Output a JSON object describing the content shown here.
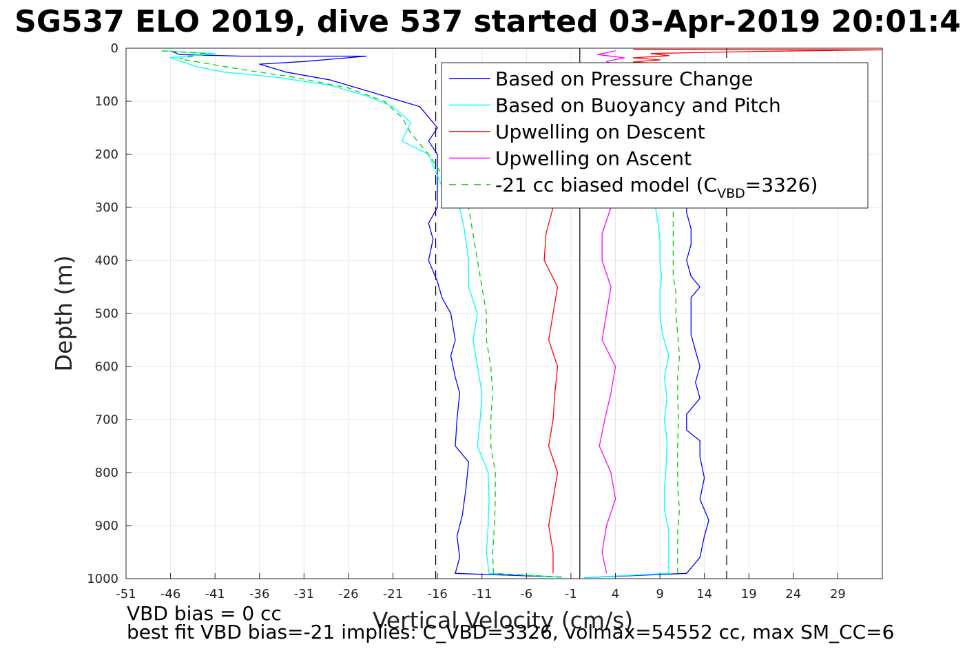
{
  "chart_data": {
    "type": "line",
    "title": "SG537 ELO 2019, dive 537 started 03-Apr-2019 20:01:4",
    "xlabel": "Vertical Velocity (cm/s)",
    "ylabel": "Depth (m)",
    "xlim": [
      -51,
      34
    ],
    "ylim": [
      0,
      1000
    ],
    "y_reversed": true,
    "grid": true,
    "x_ticks": [
      "-51",
      "-46",
      "-41",
      "-36",
      "-31",
      "-26",
      "-21",
      "-16",
      "-11",
      "-6",
      "-1",
      "4",
      "9",
      "14",
      "19",
      "24",
      "29"
    ],
    "y_ticks": [
      "0",
      "100",
      "200",
      "300",
      "400",
      "500",
      "600",
      "700",
      "800",
      "900",
      "1000"
    ],
    "legend": {
      "placement": "top-right",
      "entries": [
        {
          "label": "Based on Pressure Change",
          "color": "#0000ff",
          "dash": "solid"
        },
        {
          "label": "Based on Buoyancy and Pitch",
          "color": "#00ffff",
          "dash": "solid"
        },
        {
          "label": "Upwelling on Descent",
          "color": "#ff0000",
          "dash": "solid"
        },
        {
          "label": "Upwelling on Ascent",
          "color": "#ff00ff",
          "dash": "solid"
        },
        {
          "label": "-21 cc biased model (C",
          "sub": "VBD",
          "tail": "=3326)",
          "color": "#00cc00",
          "dash": "dashed"
        }
      ]
    },
    "reference_lines": [
      {
        "x": -16.2,
        "style": "dashed",
        "color": "#000000"
      },
      {
        "x": 0,
        "style": "solid",
        "color": "#000000"
      },
      {
        "x": 16.5,
        "style": "dashed",
        "color": "#000000"
      }
    ],
    "series": [
      {
        "name": "Based on Pressure Change",
        "color": "#0000ff",
        "points": [
          [
            -46,
            5
          ],
          [
            -45,
            12
          ],
          [
            -38,
            15
          ],
          [
            -24,
            15
          ],
          [
            -31,
            25
          ],
          [
            -36,
            30
          ],
          [
            -33,
            45
          ],
          [
            -28,
            60
          ],
          [
            -25,
            75
          ],
          [
            -22,
            90
          ],
          [
            -20,
            100
          ],
          [
            -18,
            110
          ],
          [
            -17,
            130
          ],
          [
            -16,
            150
          ],
          [
            -17,
            175
          ],
          [
            -16,
            200
          ],
          [
            -16,
            260
          ],
          [
            -16,
            300
          ],
          [
            -17,
            330
          ],
          [
            -16.5,
            360
          ],
          [
            -17,
            400
          ],
          [
            -16,
            440
          ],
          [
            -15.5,
            470
          ],
          [
            -14.5,
            500
          ],
          [
            -14,
            550
          ],
          [
            -14.5,
            580
          ],
          [
            -14,
            620
          ],
          [
            -13.5,
            650
          ],
          [
            -13.8,
            700
          ],
          [
            -14,
            750
          ],
          [
            -12.5,
            780
          ],
          [
            -12.8,
            830
          ],
          [
            -13.2,
            880
          ],
          [
            -13.8,
            920
          ],
          [
            -13.5,
            960
          ],
          [
            -14,
            990
          ],
          [
            -2,
            997
          ]
        ]
      },
      {
        "name": "Based on Buoyancy and Pitch",
        "color": "#00ffff",
        "points": [
          [
            -47,
            5
          ],
          [
            -41,
            10
          ],
          [
            -46,
            18
          ],
          [
            -43,
            35
          ],
          [
            -40,
            45
          ],
          [
            -34,
            55
          ],
          [
            -28,
            70
          ],
          [
            -24,
            90
          ],
          [
            -21,
            110
          ],
          [
            -19,
            140
          ],
          [
            -20,
            175
          ],
          [
            -17,
            200
          ],
          [
            -16,
            240
          ],
          [
            -15,
            280
          ],
          [
            -13.5,
            300
          ],
          [
            -13,
            340
          ],
          [
            -12.5,
            400
          ],
          [
            -12.5,
            450
          ],
          [
            -11.5,
            500
          ],
          [
            -12,
            550
          ],
          [
            -11.5,
            600
          ],
          [
            -11,
            650
          ],
          [
            -11.2,
            700
          ],
          [
            -11.5,
            750
          ],
          [
            -10.3,
            800
          ],
          [
            -10.2,
            850
          ],
          [
            -10.3,
            900
          ],
          [
            -10.5,
            950
          ],
          [
            -10.2,
            990
          ],
          [
            -2,
            997
          ]
        ]
      },
      {
        "name": "Upwelling on Descent",
        "color": "#ff0000",
        "points": [
          [
            -3,
            300
          ],
          [
            -3.8,
            350
          ],
          [
            -4,
            400
          ],
          [
            -2.5,
            450
          ],
          [
            -3,
            500
          ],
          [
            -3.5,
            550
          ],
          [
            -2.5,
            600
          ],
          [
            -2.8,
            650
          ],
          [
            -3,
            700
          ],
          [
            -3.5,
            750
          ],
          [
            -2.5,
            800
          ],
          [
            -3,
            850
          ],
          [
            -3.5,
            900
          ],
          [
            -3,
            950
          ],
          [
            -3,
            990
          ]
        ]
      },
      {
        "name": "Upwelling on Ascent",
        "color": "#ff00ff",
        "points": [
          [
            3.5,
            300
          ],
          [
            2.5,
            350
          ],
          [
            2.5,
            400
          ],
          [
            3.5,
            450
          ],
          [
            3,
            500
          ],
          [
            2.5,
            550
          ],
          [
            4,
            600
          ],
          [
            3.5,
            650
          ],
          [
            2.8,
            700
          ],
          [
            2.2,
            750
          ],
          [
            3.5,
            800
          ],
          [
            4,
            850
          ],
          [
            3,
            900
          ],
          [
            2.5,
            950
          ],
          [
            3,
            990
          ]
        ]
      },
      {
        "name": "-21 cc biased model (C_VBD=3326)",
        "color": "#00cc00",
        "points": [
          [
            -47,
            5
          ],
          [
            -42,
            10
          ],
          [
            -45,
            20
          ],
          [
            -38,
            40
          ],
          [
            -32,
            55
          ],
          [
            -26,
            75
          ],
          [
            -22,
            100
          ],
          [
            -20,
            130
          ],
          [
            -19,
            160
          ],
          [
            -17,
            200
          ],
          [
            -15,
            250
          ],
          [
            -12.5,
            300
          ],
          [
            -12,
            350
          ],
          [
            -11.5,
            400
          ],
          [
            -11,
            450
          ],
          [
            -10.5,
            500
          ],
          [
            -10.5,
            550
          ],
          [
            -10,
            600
          ],
          [
            -9.8,
            650
          ],
          [
            -10,
            700
          ],
          [
            -10,
            750
          ],
          [
            -9.5,
            800
          ],
          [
            -9.5,
            850
          ],
          [
            -9.6,
            900
          ],
          [
            -9.8,
            950
          ],
          [
            -9.7,
            990
          ],
          [
            -2,
            997
          ]
        ]
      },
      {
        "name": "Based on Pressure Change (ascent)",
        "color": "#0000ff",
        "points": [
          [
            0.5,
            998
          ],
          [
            12,
            990
          ],
          [
            13.5,
            960
          ],
          [
            14,
            920
          ],
          [
            14.5,
            890
          ],
          [
            13.5,
            850
          ],
          [
            14,
            810
          ],
          [
            13.5,
            770
          ],
          [
            13.5,
            740
          ],
          [
            12,
            720
          ],
          [
            12,
            690
          ],
          [
            13.5,
            660
          ],
          [
            13,
            630
          ],
          [
            13.5,
            600
          ],
          [
            13,
            570
          ],
          [
            12.5,
            540
          ],
          [
            12.5,
            500
          ],
          [
            12.5,
            470
          ],
          [
            13.5,
            450
          ],
          [
            12.5,
            430
          ],
          [
            12,
            400
          ],
          [
            12.5,
            370
          ],
          [
            12.5,
            340
          ],
          [
            12,
            310
          ],
          [
            12,
            300
          ]
        ]
      },
      {
        "name": "Based on Buoyancy and Pitch (ascent)",
        "color": "#00ffff",
        "points": [
          [
            0.5,
            998
          ],
          [
            10,
            990
          ],
          [
            10,
            950
          ],
          [
            10,
            910
          ],
          [
            9.5,
            870
          ],
          [
            9.5,
            830
          ],
          [
            9.7,
            790
          ],
          [
            9.8,
            740
          ],
          [
            9.5,
            700
          ],
          [
            9.8,
            660
          ],
          [
            9.5,
            620
          ],
          [
            10,
            580
          ],
          [
            9.3,
            540
          ],
          [
            9,
            500
          ],
          [
            9,
            460
          ],
          [
            9.2,
            430
          ],
          [
            9,
            400
          ],
          [
            9,
            360
          ],
          [
            8.8,
            330
          ],
          [
            8.5,
            300
          ]
        ]
      },
      {
        "name": "-21 cc biased model (ascent)",
        "color": "#00cc00",
        "points": [
          [
            11,
            990
          ],
          [
            11,
            950
          ],
          [
            11,
            910
          ],
          [
            11.2,
            870
          ],
          [
            11,
            830
          ],
          [
            11,
            790
          ],
          [
            11,
            740
          ],
          [
            11.1,
            700
          ],
          [
            11,
            660
          ],
          [
            11,
            620
          ],
          [
            11.2,
            580
          ],
          [
            11,
            540
          ],
          [
            10.8,
            500
          ],
          [
            10.8,
            460
          ],
          [
            10.5,
            430
          ],
          [
            10.5,
            400
          ],
          [
            10.5,
            360
          ],
          [
            10.5,
            330
          ],
          [
            10.5,
            300
          ]
        ]
      },
      {
        "name": "Upwelling on Descent (surface)",
        "color": "#ff0000",
        "points": [
          [
            6,
            2
          ],
          [
            34,
            3
          ],
          [
            20,
            6
          ],
          [
            8,
            10
          ],
          [
            10,
            14
          ],
          [
            6,
            18
          ],
          [
            9,
            22
          ],
          [
            6,
            26
          ],
          [
            10,
            30
          ],
          [
            8,
            35
          ]
        ]
      },
      {
        "name": "Upwelling on Ascent (surface)",
        "color": "#ff00ff",
        "points": [
          [
            4,
            5
          ],
          [
            2,
            12
          ],
          [
            5,
            18
          ],
          [
            3,
            25
          ],
          [
            4,
            32
          ]
        ]
      }
    ]
  },
  "footnotes": {
    "line1": "VBD bias = 0 cc",
    "line2": "best fit VBD bias=-21 implies: C_VBD=3326, volmax=54552 cc, max SM_CC=6"
  }
}
